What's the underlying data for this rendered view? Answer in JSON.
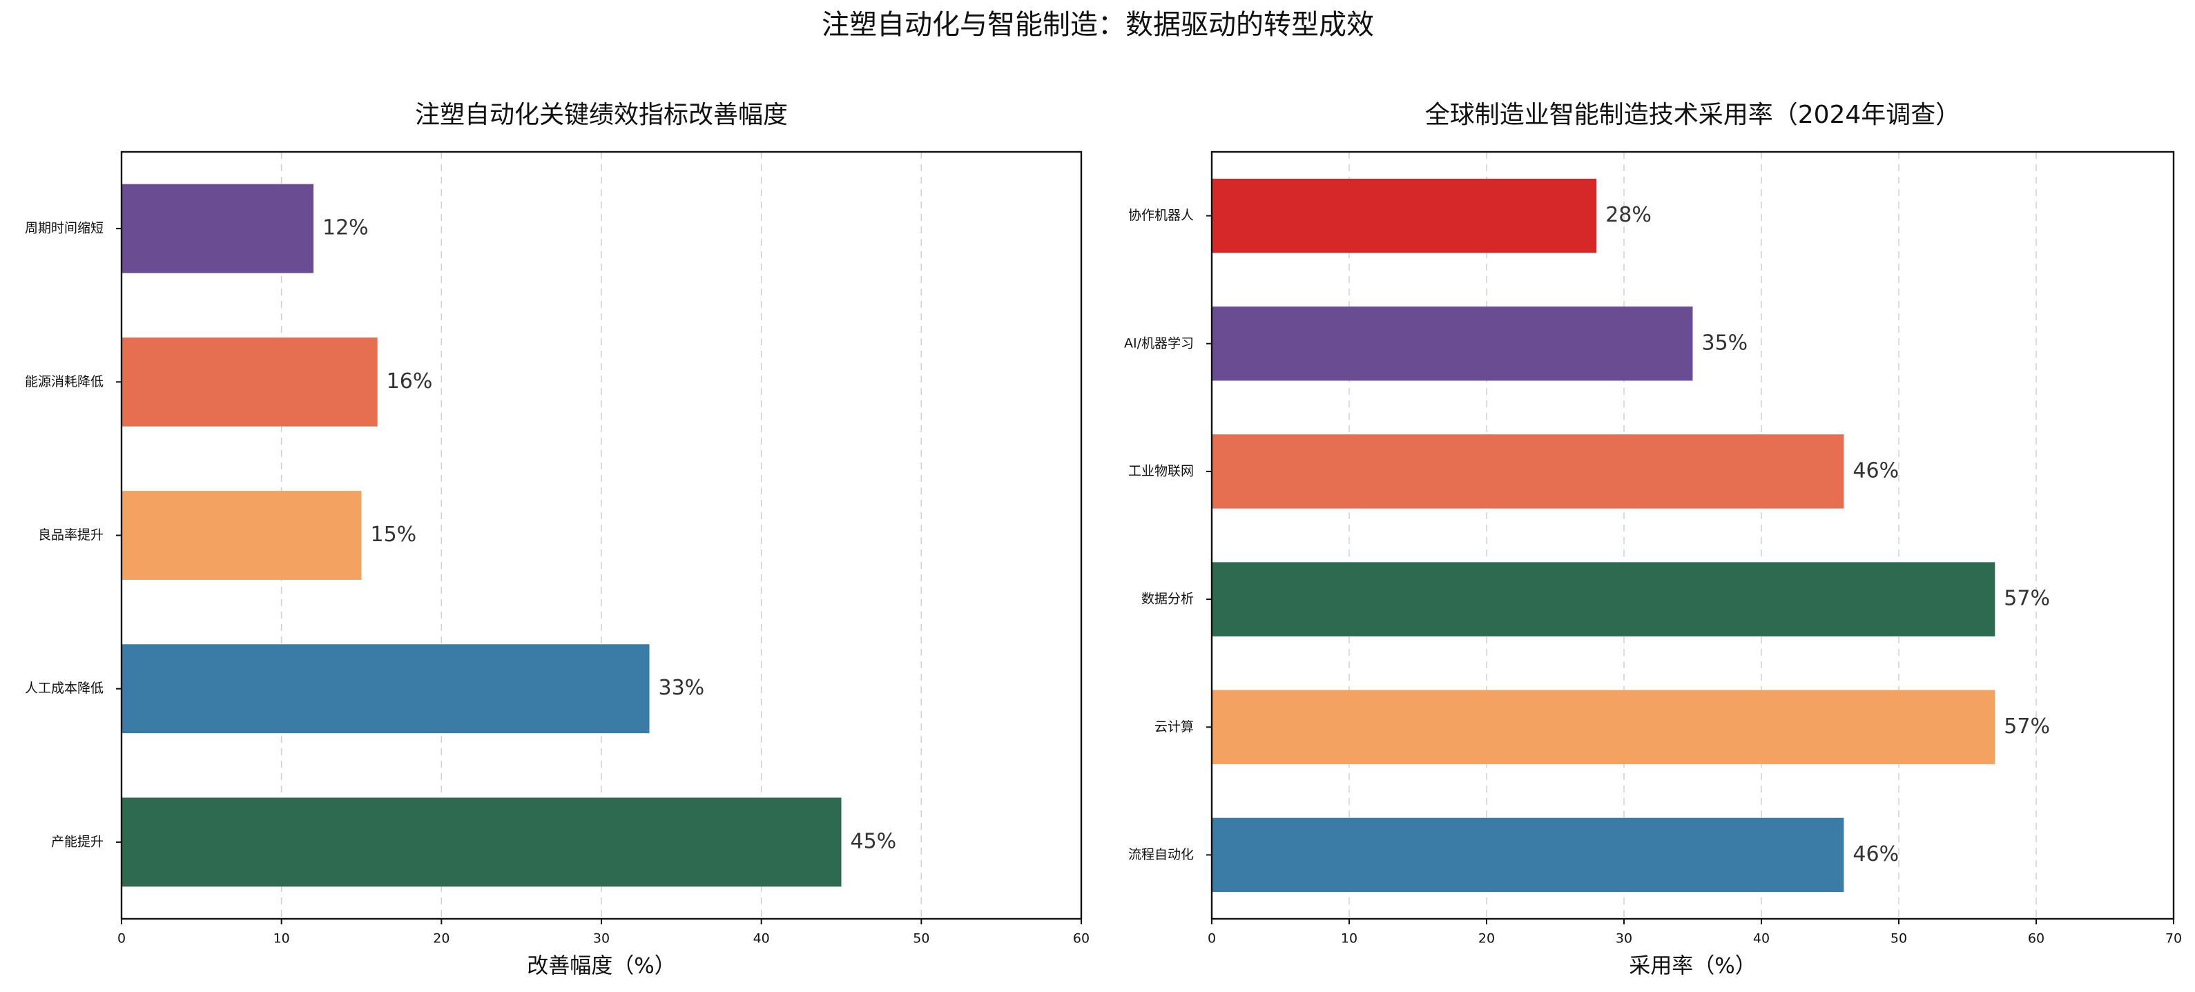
{
  "figure": {
    "title": "注塑自动化与智能制造：数据驱动的转型成效"
  },
  "chart_data": [
    {
      "type": "bar",
      "orientation": "horizontal",
      "title": "注塑自动化关键绩效指标改善幅度",
      "xlabel": "改善幅度（%）",
      "ylabel": "",
      "xlim": [
        0,
        60
      ],
      "xticks": [
        0,
        10,
        20,
        30,
        40,
        50,
        60
      ],
      "grid": "x-dashed",
      "legend": "none",
      "categories": [
        "周期时间缩短",
        "能源消耗降低",
        "良品率提升",
        "人工成本降低",
        "产能提升"
      ],
      "values": [
        12,
        16,
        15,
        33,
        45
      ],
      "value_labels": [
        "12%",
        "16%",
        "15%",
        "33%",
        "45%"
      ],
      "colors": [
        "#6a4c93",
        "#e76f51",
        "#f4a261",
        "#3a7ca5",
        "#2d6a4f"
      ]
    },
    {
      "type": "bar",
      "orientation": "horizontal",
      "title": "全球制造业智能制造技术采用率（2024年调查）",
      "xlabel": "采用率（%）",
      "ylabel": "",
      "xlim": [
        0,
        70
      ],
      "xticks": [
        0,
        10,
        20,
        30,
        40,
        50,
        60,
        70
      ],
      "grid": "x-dashed",
      "legend": "none",
      "categories": [
        "协作机器人",
        "AI/机器学习",
        "工业物联网",
        "数据分析",
        "云计算",
        "流程自动化"
      ],
      "values": [
        28,
        35,
        46,
        57,
        57,
        46
      ],
      "value_labels": [
        "28%",
        "35%",
        "46%",
        "57%",
        "57%",
        "46%"
      ],
      "colors": [
        "#d62828",
        "#6a4c93",
        "#e76f51",
        "#2d6a4f",
        "#f4a261",
        "#3a7ca5"
      ]
    }
  ]
}
